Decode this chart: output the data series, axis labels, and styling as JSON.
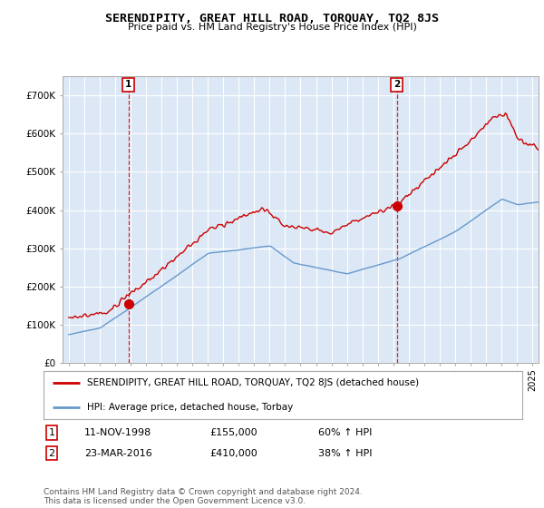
{
  "title": "SERENDIPITY, GREAT HILL ROAD, TORQUAY, TQ2 8JS",
  "subtitle": "Price paid vs. HM Land Registry's House Price Index (HPI)",
  "ylim": [
    0,
    750000
  ],
  "yticks": [
    0,
    100000,
    200000,
    300000,
    400000,
    500000,
    600000,
    700000
  ],
  "ytick_labels": [
    "£0",
    "£100K",
    "£200K",
    "£300K",
    "£400K",
    "£500K",
    "£600K",
    "£700K"
  ],
  "xlim_left": 1994.6,
  "xlim_right": 2025.4,
  "sale1_date": 1998.87,
  "sale1_price": 155000,
  "sale2_date": 2016.22,
  "sale2_price": 410000,
  "legend_line1": "SERENDIPITY, GREAT HILL ROAD, TORQUAY, TQ2 8JS (detached house)",
  "legend_line2": "HPI: Average price, detached house, Torbay",
  "table_row1": [
    "1",
    "11-NOV-1998",
    "£155,000",
    "60% ↑ HPI"
  ],
  "table_row2": [
    "2",
    "23-MAR-2016",
    "£410,000",
    "38% ↑ HPI"
  ],
  "footer": "Contains HM Land Registry data © Crown copyright and database right 2024.\nThis data is licensed under the Open Government Licence v3.0.",
  "red_color": "#cc0000",
  "blue_color": "#6699cc",
  "vline_color": "#cc0000",
  "background_color": "#ffffff",
  "plot_bg_color": "#dce8f5",
  "grid_color": "#ffffff",
  "title_fontsize": 9,
  "subtitle_fontsize": 8.5
}
